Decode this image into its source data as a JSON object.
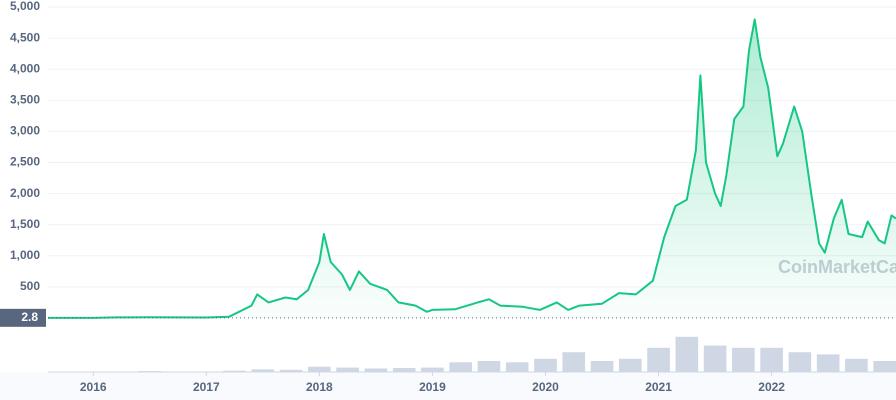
{
  "chart_data": {
    "type": "area",
    "color": "#16c784",
    "watermark": "CoinMarketCap",
    "baseline": {
      "value": 2.8,
      "label": "2.8"
    },
    "grid": true,
    "xlim": [
      2015.6,
      2023.1
    ],
    "xticks": [
      2016,
      2017,
      2018,
      2019,
      2020,
      2021,
      2022
    ],
    "ylim": [
      0,
      5000
    ],
    "yticks": [
      {
        "value": 5000,
        "label": "5,000"
      },
      {
        "value": 4500,
        "label": "4,500"
      },
      {
        "value": 4000,
        "label": "4,000"
      },
      {
        "value": 3500,
        "label": "3,500"
      },
      {
        "value": 3000,
        "label": "3,000"
      },
      {
        "value": 2500,
        "label": "2,500"
      },
      {
        "value": 2000,
        "label": "2,000"
      },
      {
        "value": 1500,
        "label": "1,500"
      },
      {
        "value": 1000,
        "label": "1,000"
      },
      500
    ],
    "x": [
      2015.6,
      2016.0,
      2016.2,
      2016.5,
      2017.0,
      2017.2,
      2017.4,
      2017.45,
      2017.55,
      2017.7,
      2017.8,
      2017.9,
      2018.0,
      2018.04,
      2018.1,
      2018.2,
      2018.27,
      2018.35,
      2018.45,
      2018.6,
      2018.7,
      2018.85,
      2018.95,
      2019.0,
      2019.2,
      2019.4,
      2019.5,
      2019.6,
      2019.8,
      2019.95,
      2020.1,
      2020.2,
      2020.3,
      2020.5,
      2020.65,
      2020.8,
      2020.95,
      2021.05,
      2021.15,
      2021.25,
      2021.33,
      2021.37,
      2021.42,
      2021.5,
      2021.55,
      2021.6,
      2021.67,
      2021.75,
      2021.8,
      2021.85,
      2021.9,
      2021.97,
      2022.05,
      2022.1,
      2022.2,
      2022.27,
      2022.35,
      2022.42,
      2022.47,
      2022.55,
      2022.62,
      2022.68,
      2022.8,
      2022.85,
      2022.95,
      2023.0,
      2023.06,
      2023.1
    ],
    "values": [
      1,
      1,
      10,
      12,
      8,
      20,
      200,
      380,
      250,
      330,
      300,
      450,
      900,
      1350,
      900,
      700,
      450,
      750,
      550,
      450,
      250,
      200,
      100,
      130,
      140,
      250,
      300,
      200,
      180,
      130,
      250,
      130,
      200,
      230,
      400,
      380,
      600,
      1300,
      1800,
      1900,
      2700,
      3900,
      2500,
      2000,
      1800,
      2300,
      3200,
      3400,
      4300,
      4800,
      4200,
      3700,
      2600,
      2800,
      3400,
      3000,
      2000,
      1200,
      1050,
      1600,
      1900,
      1350,
      1300,
      1550,
      1250,
      1200,
      1650,
      1600
    ],
    "volume": {
      "x": [
        2015.75,
        2016.0,
        2016.25,
        2016.5,
        2016.75,
        2017.0,
        2017.25,
        2017.5,
        2017.75,
        2018.0,
        2018.25,
        2018.5,
        2018.75,
        2019.0,
        2019.25,
        2019.5,
        2019.75,
        2020.0,
        2020.25,
        2020.5,
        2020.75,
        2021.0,
        2021.25,
        2021.5,
        2021.75,
        2022.0,
        2022.25,
        2022.5,
        2022.75,
        2023.0
      ],
      "values": [
        1,
        1,
        1,
        2,
        1,
        1,
        3,
        6,
        5,
        12,
        10,
        8,
        9,
        10,
        22,
        25,
        22,
        30,
        45,
        25,
        30,
        55,
        80,
        60,
        55,
        55,
        45,
        40,
        30,
        25
      ],
      "ylim": [
        0,
        100
      ]
    }
  }
}
